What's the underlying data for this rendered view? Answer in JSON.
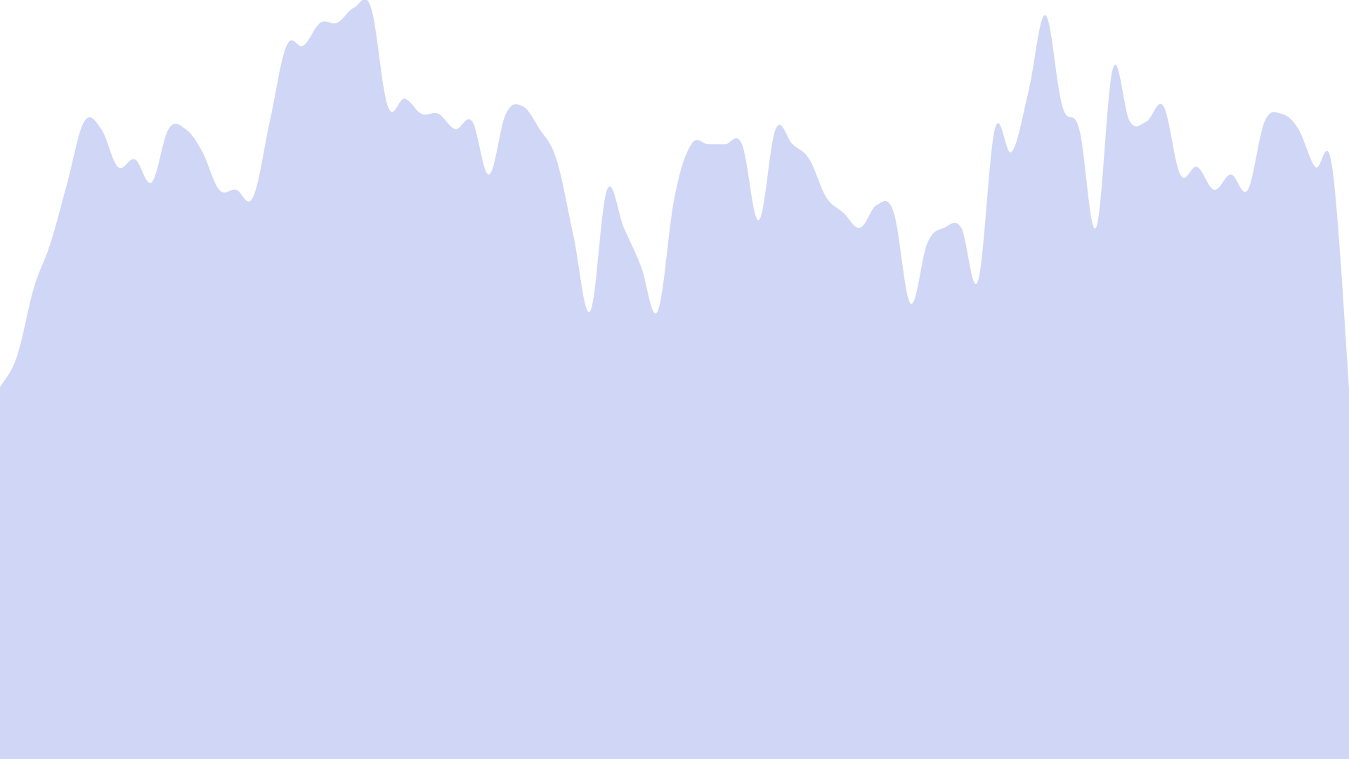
{
  "colors": {
    "background": "#ffffff",
    "area_fill": "#d0d6f5"
  },
  "chart_data": {
    "type": "area",
    "title": "",
    "xlabel": "",
    "ylabel": "",
    "grid": false,
    "legend": "none",
    "x": [
      0,
      0.5,
      1,
      1.5,
      2,
      2.5,
      3,
      3.5,
      4,
      4.5,
      5,
      5.5,
      6,
      6.5,
      7,
      7.5,
      8,
      8.5,
      9,
      9.5,
      10,
      10.5,
      11,
      11.5,
      12,
      12.5,
      13,
      13.5,
      14,
      14.5,
      15,
      15.5,
      16,
      16.5,
      17,
      17.5,
      18,
      18.5,
      19,
      19.5,
      20,
      20.5,
      21,
      21.5,
      22,
      22.5,
      23,
      23.5,
      24,
      24.5,
      25,
      25.5,
      26,
      26.5,
      27,
      27.5,
      28,
      28.5,
      29,
      29.5,
      30,
      30.5,
      31,
      31.5,
      32,
      32.5,
      33,
      33.5,
      34,
      34.5,
      35,
      35.5,
      36,
      36.5,
      37,
      37.5,
      38,
      38.5,
      39,
      39.5,
      40
    ],
    "series": [
      {
        "values": [
          49,
          53,
          62,
          68,
          76,
          84,
          83,
          78,
          79,
          76,
          83,
          83,
          80,
          75,
          75,
          74,
          84,
          94,
          94,
          97,
          97,
          99,
          99,
          86,
          87,
          85,
          85,
          83,
          84,
          77,
          85,
          86,
          83,
          79,
          69,
          59,
          75,
          70,
          65,
          59,
          74,
          81,
          81,
          81,
          81,
          71,
          83,
          81,
          79,
          74,
          72,
          70,
          73,
          72,
          60,
          68,
          70,
          70,
          63,
          83,
          80,
          88,
          98,
          86,
          83,
          70,
          91,
          84,
          84,
          86,
          77,
          78,
          75,
          77,
          75,
          84,
          85,
          83,
          78,
          78,
          49
        ]
      }
    ],
    "xlim": [
      0,
      40
    ],
    "ylim": [
      0,
      100
    ]
  }
}
